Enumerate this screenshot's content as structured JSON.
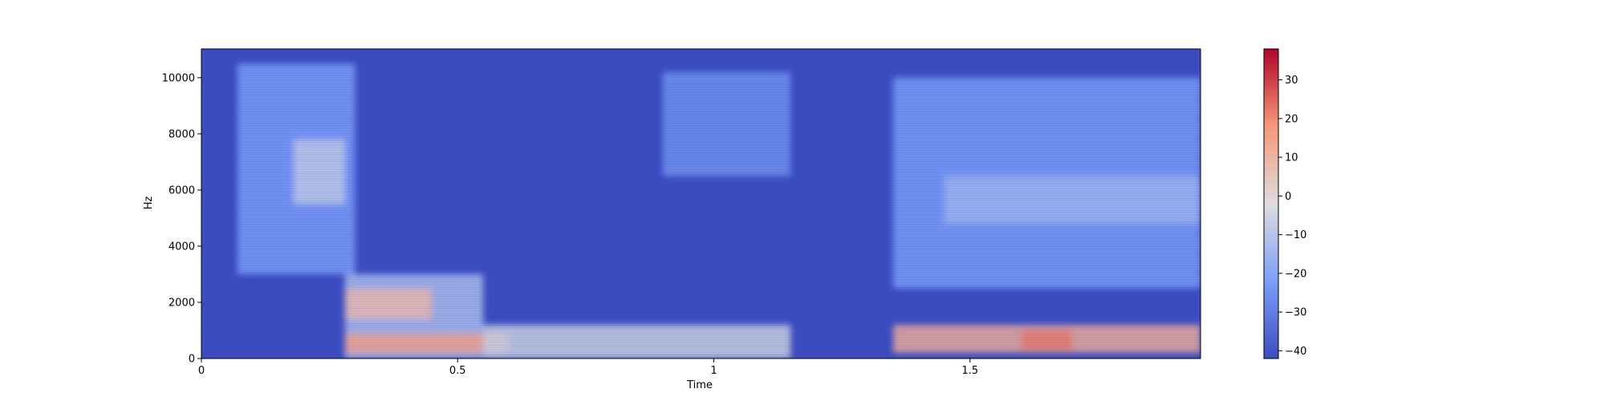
{
  "chart_data": {
    "type": "heatmap",
    "title": "",
    "xlabel": "Time",
    "ylabel": "Hz",
    "xlim": [
      0,
      1.95
    ],
    "ylim": [
      0,
      11025
    ],
    "x_ticks": [
      0,
      0.5,
      1,
      1.5
    ],
    "x_tick_labels": [
      "0",
      "0.5",
      "1",
      "1.5"
    ],
    "y_ticks": [
      0,
      2000,
      4000,
      6000,
      8000,
      10000
    ],
    "y_tick_labels": [
      "0",
      "2000",
      "4000",
      "6000",
      "8000",
      "10000"
    ],
    "colorbar": {
      "colormap": "coolwarm",
      "range": [
        -42,
        38
      ],
      "ticks": [
        30,
        20,
        10,
        0,
        -10,
        -20,
        -30,
        -40
      ],
      "tick_labels": [
        "30",
        "20",
        "10",
        "0",
        "−10",
        "−20",
        "−30",
        "−40"
      ]
    },
    "colors": {
      "low": "#3b4cc0",
      "mid": "#dddddd",
      "high": "#b40426"
    },
    "grid": false,
    "regions": [
      {
        "t": [
          0.07,
          0.3
        ],
        "f": [
          3000,
          10500
        ],
        "level_db": -22
      },
      {
        "t": [
          0.18,
          0.28
        ],
        "f": [
          5500,
          7800
        ],
        "level_db": -8
      },
      {
        "t": [
          0.28,
          0.55
        ],
        "f": [
          0,
          3000
        ],
        "level_db": -12
      },
      {
        "t": [
          0.28,
          0.45
        ],
        "f": [
          1400,
          2500
        ],
        "level_db": 8
      },
      {
        "t": [
          0.28,
          0.6
        ],
        "f": [
          200,
          900
        ],
        "level_db": 15
      },
      {
        "t": [
          0.55,
          1.15
        ],
        "f": [
          0,
          1200
        ],
        "level_db": -5
      },
      {
        "t": [
          0.9,
          1.15
        ],
        "f": [
          6500,
          10200
        ],
        "level_db": -25
      },
      {
        "t": [
          1.35,
          1.95
        ],
        "f": [
          2500,
          10000
        ],
        "level_db": -22
      },
      {
        "t": [
          1.45,
          1.95
        ],
        "f": [
          4800,
          6500
        ],
        "level_db": -15
      },
      {
        "t": [
          1.35,
          1.95
        ],
        "f": [
          200,
          1200
        ],
        "level_db": 12
      },
      {
        "t": [
          1.6,
          1.7
        ],
        "f": [
          300,
          1000
        ],
        "level_db": 22
      }
    ]
  }
}
